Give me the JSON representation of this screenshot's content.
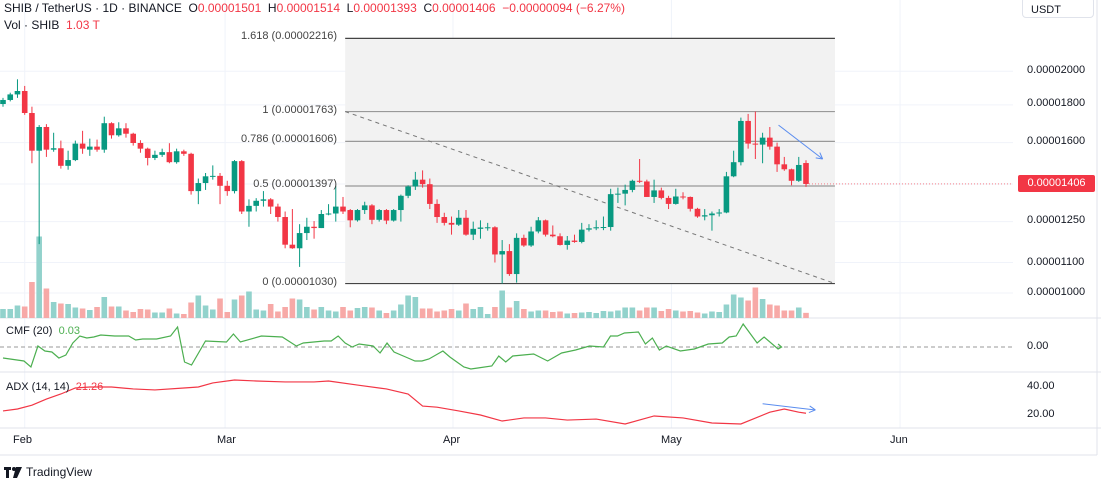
{
  "header": {
    "symbol": "SHIB / TetherUS · 1D · BINANCE",
    "o_label": "O",
    "o": "0.00001501",
    "h_label": "H",
    "h": "0.00001514",
    "l_label": "L",
    "l": "0.00001393",
    "c_label": "C",
    "c": "0.00001406",
    "change": "−0.00000094 (−6.27%)",
    "vol_label": "Vol · SHIB",
    "vol": "1.03 T"
  },
  "price_axis": {
    "currency": "USDT",
    "labels": [
      "0.00002000",
      "0.00001800",
      "0.00001600",
      "0.00001250",
      "0.00001100",
      "0.00001000"
    ],
    "last_price": "0.00001406"
  },
  "fib": {
    "levels": [
      {
        "label": "1.618 (0.00002216)",
        "price": 2216
      },
      {
        "label": "1 (0.00001763)",
        "price": 1763
      },
      {
        "label": "0.786 (0.00001606)",
        "price": 1606
      },
      {
        "label": "0.5 (0.00001397)",
        "price": 1397
      },
      {
        "label": "0 (0.00001030)",
        "price": 1030
      }
    ],
    "start_index": 47.3,
    "end_index": 115
  },
  "indicators": {
    "cmf_label": "CMF (20)",
    "cmf_value": "0.03",
    "cmf_axis": "0.00",
    "adx_label": "ADX (14, 14)",
    "adx_value": "21.26",
    "adx_axis": [
      "40.00",
      "20.00"
    ]
  },
  "time_axis": [
    {
      "label": "Feb",
      "index": 3
    },
    {
      "label": "Mar",
      "index": 30.7
    },
    {
      "label": "Apr",
      "index": 62.2
    },
    {
      "label": "May",
      "index": 92.4
    },
    {
      "label": "Jun",
      "index": 124
    }
  ],
  "brand": "TradingView",
  "colors": {
    "up": "#089981",
    "down": "#f23645",
    "vol_up": "#92d2cc",
    "vol_down": "#f7a9a7",
    "cmf": "#4caf50",
    "adx": "#f23645",
    "arrow": "#5b8def",
    "fib_bg": "#f2f2f2"
  },
  "chart_data": {
    "type": "candlestick",
    "price_units": "x1e-8 USDT",
    "scale": "log",
    "ylim": [
      1000,
      2216
    ],
    "candles_ohlc": [
      [
        1805,
        1840,
        1790,
        1828
      ],
      [
        1828,
        1870,
        1820,
        1860
      ],
      [
        1860,
        1950,
        1840,
        1880
      ],
      [
        1880,
        1910,
        1745,
        1755
      ],
      [
        1755,
        1790,
        1500,
        1560
      ],
      [
        1560,
        1690,
        1165,
        1680
      ],
      [
        1680,
        1695,
        1530,
        1565
      ],
      [
        1565,
        1650,
        1555,
        1572
      ],
      [
        1572,
        1610,
        1475,
        1488
      ],
      [
        1488,
        1560,
        1470,
        1515
      ],
      [
        1515,
        1610,
        1510,
        1595
      ],
      [
        1595,
        1660,
        1545,
        1570
      ],
      [
        1565,
        1620,
        1535,
        1580
      ],
      [
        1580,
        1615,
        1555,
        1565
      ],
      [
        1565,
        1735,
        1550,
        1700
      ],
      [
        1700,
        1705,
        1620,
        1637
      ],
      [
        1637,
        1705,
        1630,
        1673
      ],
      [
        1673,
        1700,
        1625,
        1645
      ],
      [
        1645,
        1650,
        1585,
        1598
      ],
      [
        1598,
        1612,
        1550,
        1570
      ],
      [
        1570,
        1575,
        1490,
        1525
      ],
      [
        1525,
        1560,
        1515,
        1540
      ],
      [
        1540,
        1570,
        1530,
        1553
      ],
      [
        1553,
        1597,
        1500,
        1505
      ],
      [
        1505,
        1570,
        1498,
        1557
      ],
      [
        1557,
        1565,
        1535,
        1545
      ],
      [
        1545,
        1550,
        1360,
        1375
      ],
      [
        1375,
        1430,
        1320,
        1410
      ],
      [
        1410,
        1455,
        1380,
        1440
      ],
      [
        1440,
        1490,
        1425,
        1442
      ],
      [
        1442,
        1455,
        1320,
        1398
      ],
      [
        1398,
        1420,
        1355,
        1375
      ],
      [
        1375,
        1515,
        1365,
        1510
      ],
      [
        1510,
        1515,
        1280,
        1290
      ],
      [
        1290,
        1340,
        1230,
        1313
      ],
      [
        1313,
        1345,
        1290,
        1334
      ],
      [
        1334,
        1375,
        1310,
        1340
      ],
      [
        1340,
        1345,
        1280,
        1310
      ],
      [
        1310,
        1322,
        1250,
        1268
      ],
      [
        1268,
        1290,
        1150,
        1163
      ],
      [
        1163,
        1300,
        1148,
        1150
      ],
      [
        1150,
        1240,
        1085,
        1206
      ],
      [
        1206,
        1265,
        1180,
        1230
      ],
      [
        1230,
        1252,
        1185,
        1225
      ],
      [
        1225,
        1296,
        1225,
        1280
      ],
      [
        1280,
        1320,
        1275,
        1282
      ],
      [
        1282,
        1398,
        1250,
        1310
      ],
      [
        1310,
        1350,
        1280,
        1290
      ],
      [
        1296,
        1300,
        1228,
        1255
      ],
      [
        1255,
        1300,
        1250,
        1296
      ],
      [
        1296,
        1330,
        1280,
        1315
      ],
      [
        1315,
        1320,
        1240,
        1257
      ],
      [
        1257,
        1300,
        1250,
        1296
      ],
      [
        1296,
        1300,
        1240,
        1254
      ],
      [
        1254,
        1300,
        1250,
        1296
      ],
      [
        1296,
        1360,
        1250,
        1355
      ],
      [
        1355,
        1400,
        1345,
        1395
      ],
      [
        1395,
        1460,
        1380,
        1425
      ],
      [
        1425,
        1467,
        1390,
        1405
      ],
      [
        1405,
        1430,
        1300,
        1321
      ],
      [
        1321,
        1340,
        1245,
        1268
      ],
      [
        1268,
        1285,
        1235,
        1245
      ],
      [
        1245,
        1270,
        1200,
        1238
      ],
      [
        1238,
        1296,
        1233,
        1265
      ],
      [
        1265,
        1296,
        1196,
        1200
      ],
      [
        1200,
        1250,
        1180,
        1222
      ],
      [
        1222,
        1255,
        1185,
        1227
      ],
      [
        1227,
        1245,
        1215,
        1228
      ],
      [
        1228,
        1232,
        1100,
        1128
      ],
      [
        1128,
        1180,
        1030,
        1140
      ],
      [
        1140,
        1165,
        1055,
        1061
      ],
      [
        1061,
        1205,
        1033,
        1188
      ],
      [
        1188,
        1200,
        1155,
        1160
      ],
      [
        1160,
        1230,
        1155,
        1212
      ],
      [
        1212,
        1268,
        1205,
        1255
      ],
      [
        1255,
        1258,
        1193,
        1200
      ],
      [
        1200,
        1235,
        1190,
        1194
      ],
      [
        1194,
        1205,
        1160,
        1162
      ],
      [
        1162,
        1195,
        1145,
        1178
      ],
      [
        1178,
        1200,
        1170,
        1173
      ],
      [
        1173,
        1245,
        1168,
        1219
      ],
      [
        1219,
        1240,
        1212,
        1224
      ],
      [
        1224,
        1255,
        1217,
        1228
      ],
      [
        1228,
        1270,
        1217,
        1229
      ],
      [
        1229,
        1385,
        1215,
        1362
      ],
      [
        1362,
        1390,
        1325,
        1364
      ],
      [
        1364,
        1403,
        1315,
        1380
      ],
      [
        1380,
        1425,
        1370,
        1420
      ],
      [
        1420,
        1520,
        1410,
        1417
      ],
      [
        1417,
        1425,
        1350,
        1350
      ],
      [
        1350,
        1425,
        1325,
        1378
      ],
      [
        1378,
        1390,
        1340,
        1346
      ],
      [
        1346,
        1355,
        1300,
        1321
      ],
      [
        1321,
        1385,
        1318,
        1352
      ],
      [
        1352,
        1370,
        1340,
        1350
      ],
      [
        1350,
        1352,
        1290,
        1301
      ],
      [
        1301,
        1305,
        1265,
        1270
      ],
      [
        1270,
        1300,
        1255,
        1275
      ],
      [
        1275,
        1290,
        1215,
        1282
      ],
      [
        1282,
        1300,
        1270,
        1286
      ],
      [
        1286,
        1460,
        1283,
        1440
      ],
      [
        1440,
        1560,
        1436,
        1505
      ],
      [
        1505,
        1730,
        1490,
        1712
      ],
      [
        1712,
        1750,
        1570,
        1595
      ],
      [
        1595,
        1763,
        1520,
        1590
      ],
      [
        1590,
        1650,
        1500,
        1625
      ],
      [
        1625,
        1680,
        1565,
        1580
      ],
      [
        1580,
        1600,
        1460,
        1495
      ],
      [
        1495,
        1530,
        1465,
        1472
      ],
      [
        1472,
        1475,
        1400,
        1420
      ],
      [
        1420,
        1530,
        1415,
        1492
      ],
      [
        1501,
        1514,
        1393,
        1406
      ]
    ],
    "volume_T": [
      1.8,
      1.8,
      2.5,
      2.3,
      7.2,
      16.3,
      5.9,
      3.2,
      2.9,
      2.8,
      2.1,
      1.9,
      1.6,
      2.2,
      4.2,
      2.3,
      2.3,
      1.5,
      1.2,
      1.8,
      1.7,
      1.1,
      1.1,
      1.9,
      0.9,
      0.8,
      3.1,
      4.5,
      2.5,
      1.7,
      3.9,
      1.2,
      3.7,
      4.5,
      5.3,
      1.7,
      1.5,
      2.8,
      1.3,
      2.2,
      3.9,
      3.7,
      2.2,
      1.7,
      2.2,
      1.5,
      1.3,
      2.2,
      1.5,
      2.0,
      2.2,
      2.1,
      1.5,
      1.0,
      1.5,
      2.7,
      4.5,
      4.2,
      1.9,
      1.9,
      1.3,
      1.5,
      1.8,
      1.5,
      2.9,
      1.8,
      2.2,
      0.8,
      2.2,
      5.5,
      2.1,
      3.4,
      1.8,
      1.3,
      1.5,
      1.5,
      1.2,
      1.3,
      0.9,
      1.0,
      1.1,
      1.2,
      1.0,
      1.4,
      1.3,
      1.5,
      2.1,
      2.1,
      1.5,
      2.1,
      2.1,
      1.4,
      1.8,
      1.5,
      1.3,
      1.4,
      1.1,
      0.9,
      1.3,
      1.2,
      2.7,
      4.7,
      4.1,
      3.5,
      6.1,
      3.8,
      2.7,
      2.5,
      1.5,
      1.5,
      2.1,
      1.03
    ],
    "cmf": [
      [
        0,
        -0.11
      ],
      [
        3,
        -0.14
      ],
      [
        4,
        -0.2
      ],
      [
        5,
        0.01
      ],
      [
        6,
        -0.04
      ],
      [
        7,
        -0.05
      ],
      [
        8,
        -0.11
      ],
      [
        9,
        -0.08
      ],
      [
        10,
        0.04
      ],
      [
        11,
        0.11
      ],
      [
        12,
        0.09
      ],
      [
        13,
        0.1
      ],
      [
        14,
        0.12
      ],
      [
        16,
        0.11
      ],
      [
        18,
        0.11
      ],
      [
        19,
        0.07
      ],
      [
        20,
        0.08
      ],
      [
        22,
        0.08
      ],
      [
        24,
        0.11
      ],
      [
        25,
        0.2
      ],
      [
        26,
        -0.15
      ],
      [
        27,
        -0.18
      ],
      [
        29,
        0.06
      ],
      [
        32,
        0.05
      ],
      [
        33,
        0.13
      ],
      [
        34,
        0.05
      ],
      [
        37,
        0.11
      ],
      [
        40,
        0.1
      ],
      [
        42,
        0.01
      ],
      [
        43,
        0.04
      ],
      [
        46,
        0.06
      ],
      [
        47,
        0.06
      ],
      [
        48,
        0.11
      ],
      [
        49,
        0.04
      ],
      [
        50,
        0.0
      ],
      [
        51,
        0.03
      ],
      [
        53,
        0.01
      ],
      [
        54,
        -0.06
      ],
      [
        55,
        0.04
      ],
      [
        56,
        -0.05
      ],
      [
        58,
        -0.11
      ],
      [
        59,
        -0.14
      ],
      [
        60,
        -0.14
      ],
      [
        61,
        -0.12
      ],
      [
        63,
        -0.04
      ],
      [
        64,
        -0.1
      ],
      [
        65,
        -0.15
      ],
      [
        66,
        -0.2
      ],
      [
        67,
        -0.22
      ],
      [
        68,
        -0.21
      ],
      [
        70,
        -0.19
      ],
      [
        71,
        -0.09
      ],
      [
        72,
        -0.15
      ],
      [
        73,
        -0.09
      ],
      [
        76,
        -0.07
      ],
      [
        78,
        -0.14
      ],
      [
        80,
        -0.06
      ],
      [
        82,
        -0.03
      ],
      [
        84,
        0.01
      ],
      [
        86,
        0.0
      ],
      [
        87,
        0.11
      ],
      [
        88,
        0.11
      ],
      [
        89,
        0.14
      ],
      [
        91,
        0.15
      ],
      [
        92,
        0.03
      ],
      [
        93,
        0.09
      ],
      [
        94,
        -0.03
      ],
      [
        95,
        0.01
      ],
      [
        97,
        -0.04
      ],
      [
        99,
        -0.02
      ],
      [
        101,
        0.03
      ],
      [
        103,
        0.04
      ],
      [
        104,
        0.1
      ],
      [
        105,
        0.11
      ],
      [
        106,
        0.23
      ],
      [
        108,
        0.04
      ],
      [
        109,
        0.1
      ],
      [
        111,
        -0.02
      ],
      [
        111.5,
        0.0
      ],
      [
        111,
        0.03
      ]
    ],
    "adx": [
      [
        0,
        22.9
      ],
      [
        2,
        24.3
      ],
      [
        4,
        27
      ],
      [
        6,
        31.4
      ],
      [
        8,
        35
      ],
      [
        10,
        39.3
      ],
      [
        12,
        40
      ],
      [
        15,
        40
      ],
      [
        18,
        38.6
      ],
      [
        21,
        37.9
      ],
      [
        25,
        39.3
      ],
      [
        27,
        40
      ],
      [
        29,
        42.9
      ],
      [
        32,
        45
      ],
      [
        35,
        44.3
      ],
      [
        39,
        43.6
      ],
      [
        43,
        43.6
      ],
      [
        45,
        44.3
      ],
      [
        49,
        41.4
      ],
      [
        53,
        38.6
      ],
      [
        56,
        35
      ],
      [
        58,
        26.4
      ],
      [
        60,
        25.6
      ],
      [
        63,
        22.9
      ],
      [
        66,
        20
      ],
      [
        69,
        15.7
      ],
      [
        72,
        17.9
      ],
      [
        75,
        17.9
      ],
      [
        78,
        16.4
      ],
      [
        82,
        17.1
      ],
      [
        86,
        13.6
      ],
      [
        90,
        19.3
      ],
      [
        94,
        17.9
      ],
      [
        98,
        14.3
      ],
      [
        102,
        13.6
      ],
      [
        106,
        22
      ],
      [
        108,
        24.3
      ],
      [
        110,
        22
      ],
      [
        111,
        21.26
      ]
    ],
    "annotations": {
      "trendline": {
        "from": [
          47.3,
          1763
        ],
        "to": [
          115,
          1030
        ],
        "style": "dashed"
      },
      "price_arrow": {
        "from": [
          107.2,
          1690
        ],
        "to": [
          113.3,
          1520
        ]
      },
      "adx_arrow": {
        "from": [
          105,
          28
        ],
        "to": [
          112.3,
          23.6
        ]
      }
    }
  }
}
